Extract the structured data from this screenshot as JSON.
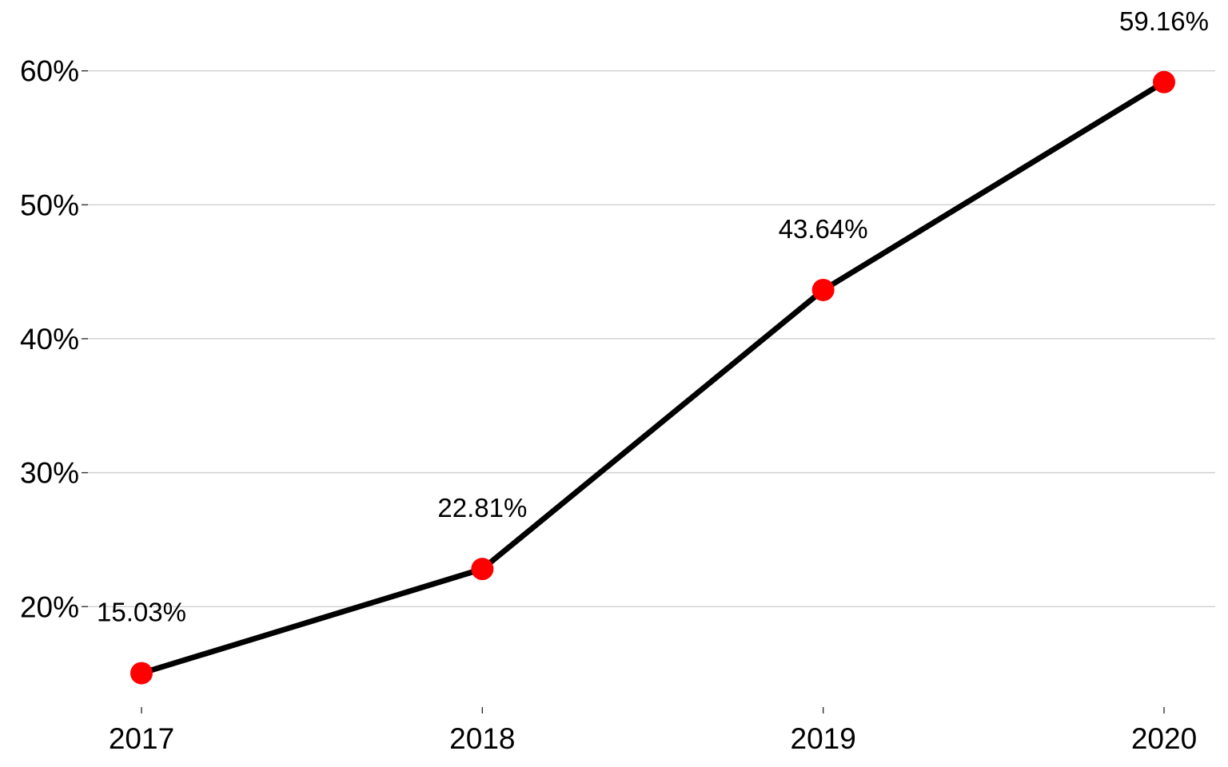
{
  "chart_data": {
    "type": "line",
    "title": "",
    "xlabel": "",
    "ylabel": "",
    "categories": [
      "2017",
      "2018",
      "2019",
      "2020"
    ],
    "series": [
      {
        "values": [
          15.03,
          22.81,
          43.64,
          59.16
        ],
        "data_labels": [
          "15.03%",
          "22.81%",
          "43.64%",
          "59.16%"
        ]
      }
    ],
    "y_ticks": [
      20,
      30,
      40,
      50,
      60
    ],
    "y_tick_labels": [
      "20%",
      "30%",
      "40%",
      "50%",
      "60%"
    ],
    "ylim": [
      12.5,
      63.5
    ],
    "grid": "horizontal",
    "legend": "none",
    "colors": {
      "line": "#000000",
      "point": "#ff0000",
      "grid": "#d0d0d0"
    }
  }
}
